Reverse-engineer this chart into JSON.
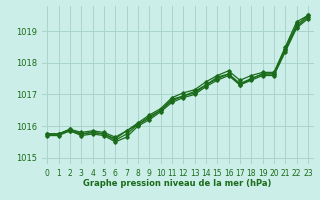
{
  "background_color": "#cceee8",
  "grid_color": "#aad4cc",
  "line_color": "#1a6b1a",
  "text_color": "#1a6b1a",
  "xlabel": "Graphe pression niveau de la mer (hPa)",
  "xlim": [
    -0.5,
    23.5
  ],
  "ylim": [
    1014.8,
    1019.8
  ],
  "yticks": [
    1015,
    1016,
    1017,
    1018,
    1019
  ],
  "xticks": [
    0,
    1,
    2,
    3,
    4,
    5,
    6,
    7,
    8,
    9,
    10,
    11,
    12,
    13,
    14,
    15,
    16,
    17,
    18,
    19,
    20,
    21,
    22,
    23
  ],
  "series": [
    [
      1015.75,
      1015.75,
      1015.9,
      1015.75,
      1015.8,
      1015.75,
      1015.55,
      1015.75,
      1016.05,
      1016.3,
      1016.5,
      1016.8,
      1016.95,
      1017.1,
      1017.3,
      1017.55,
      1017.65,
      1017.35,
      1017.5,
      1017.65,
      1017.65,
      1018.45,
      1019.2,
      1019.5
    ],
    [
      1015.75,
      1015.75,
      1015.9,
      1015.8,
      1015.85,
      1015.8,
      1015.65,
      1015.85,
      1016.1,
      1016.35,
      1016.55,
      1016.9,
      1017.05,
      1017.15,
      1017.4,
      1017.6,
      1017.75,
      1017.45,
      1017.6,
      1017.7,
      1017.7,
      1018.5,
      1019.3,
      1019.5
    ],
    [
      1015.75,
      1015.75,
      1015.85,
      1015.75,
      1015.8,
      1015.75,
      1015.6,
      1015.85,
      1016.05,
      1016.25,
      1016.5,
      1016.85,
      1016.95,
      1017.05,
      1017.3,
      1017.5,
      1017.65,
      1017.3,
      1017.5,
      1017.65,
      1017.65,
      1018.4,
      1019.15,
      1019.45
    ],
    [
      1015.7,
      1015.7,
      1015.85,
      1015.7,
      1015.75,
      1015.7,
      1015.5,
      1015.65,
      1016.0,
      1016.2,
      1016.45,
      1016.75,
      1016.9,
      1017.0,
      1017.25,
      1017.45,
      1017.6,
      1017.3,
      1017.45,
      1017.6,
      1017.6,
      1018.35,
      1019.1,
      1019.4
    ]
  ]
}
